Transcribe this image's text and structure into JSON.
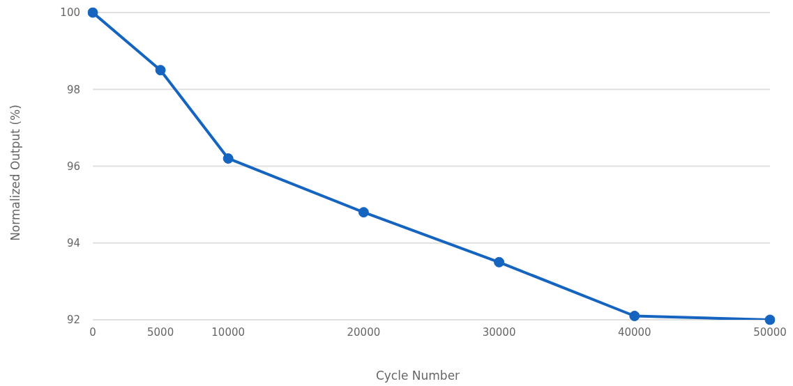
{
  "chart_data": {
    "type": "line",
    "xlabel": "Cycle Number",
    "ylabel": "Normalized Output (%)",
    "x": [
      0,
      5000,
      10000,
      20000,
      30000,
      40000,
      50000
    ],
    "series": [
      {
        "color": "#1565c0",
        "values": [
          100,
          98.5,
          96.2,
          94.8,
          93.5,
          92.1,
          92.0
        ]
      }
    ],
    "xlim": [
      0,
      50000
    ],
    "xticks": [
      0,
      5000,
      10000,
      20000,
      30000,
      40000,
      50000
    ],
    "ylim": [
      92,
      100
    ],
    "yticks": [
      92,
      94,
      96,
      98,
      100
    ],
    "grid": "y",
    "marker": "circle",
    "line_style": "solid",
    "legend": false
  }
}
